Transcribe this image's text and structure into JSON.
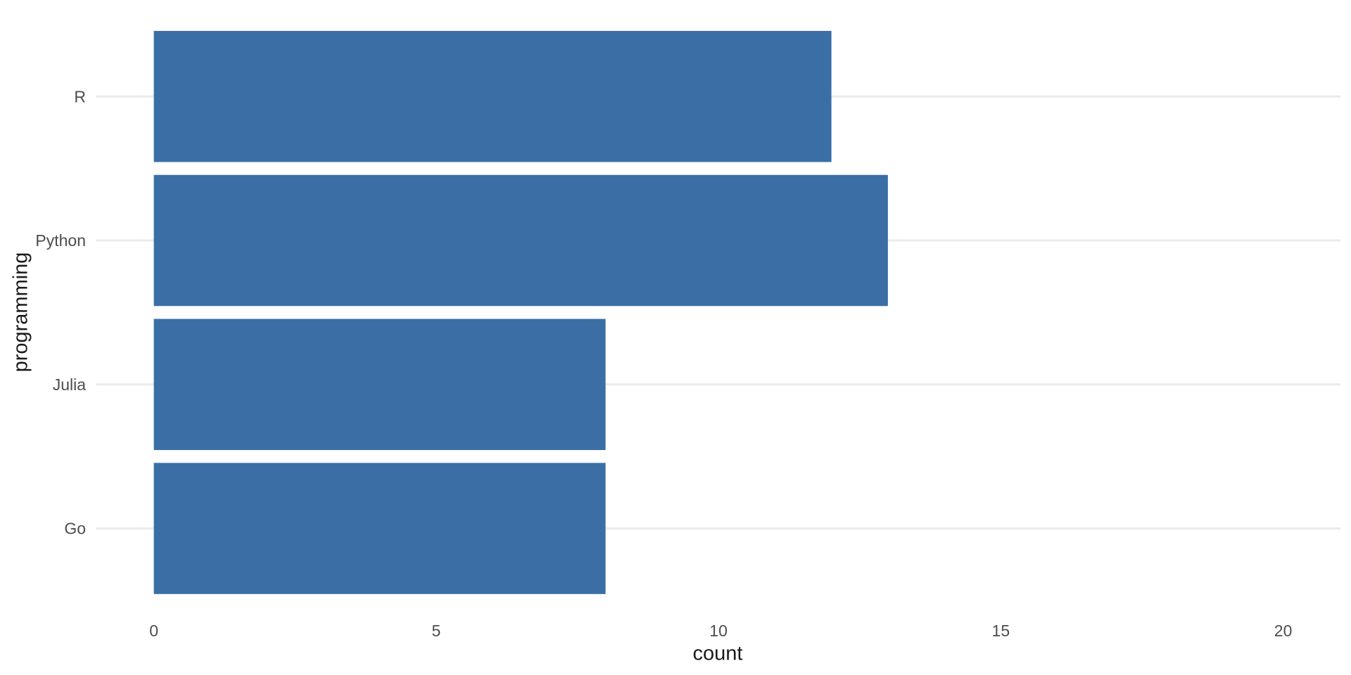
{
  "chart_data": {
    "type": "bar",
    "orientation": "horizontal",
    "title": "",
    "xlabel": "count",
    "ylabel": "programming",
    "categories": [
      "R",
      "Python",
      "Julia",
      "Go"
    ],
    "values": [
      12,
      13,
      8,
      8
    ],
    "x_ticks": [
      "0",
      "5",
      "10",
      "15",
      "20"
    ],
    "x_tick_values": [
      0,
      5,
      10,
      15,
      20
    ],
    "xlim": [
      0,
      20
    ],
    "grid": "horizontal-major-only",
    "legend": "none",
    "colors": {
      "bar": "#3a6ea5",
      "grid": "#ebebeb",
      "tick_text": "#4d4d4d",
      "axis_title_text": "#1a1a1a",
      "background": "#ffffff"
    }
  }
}
